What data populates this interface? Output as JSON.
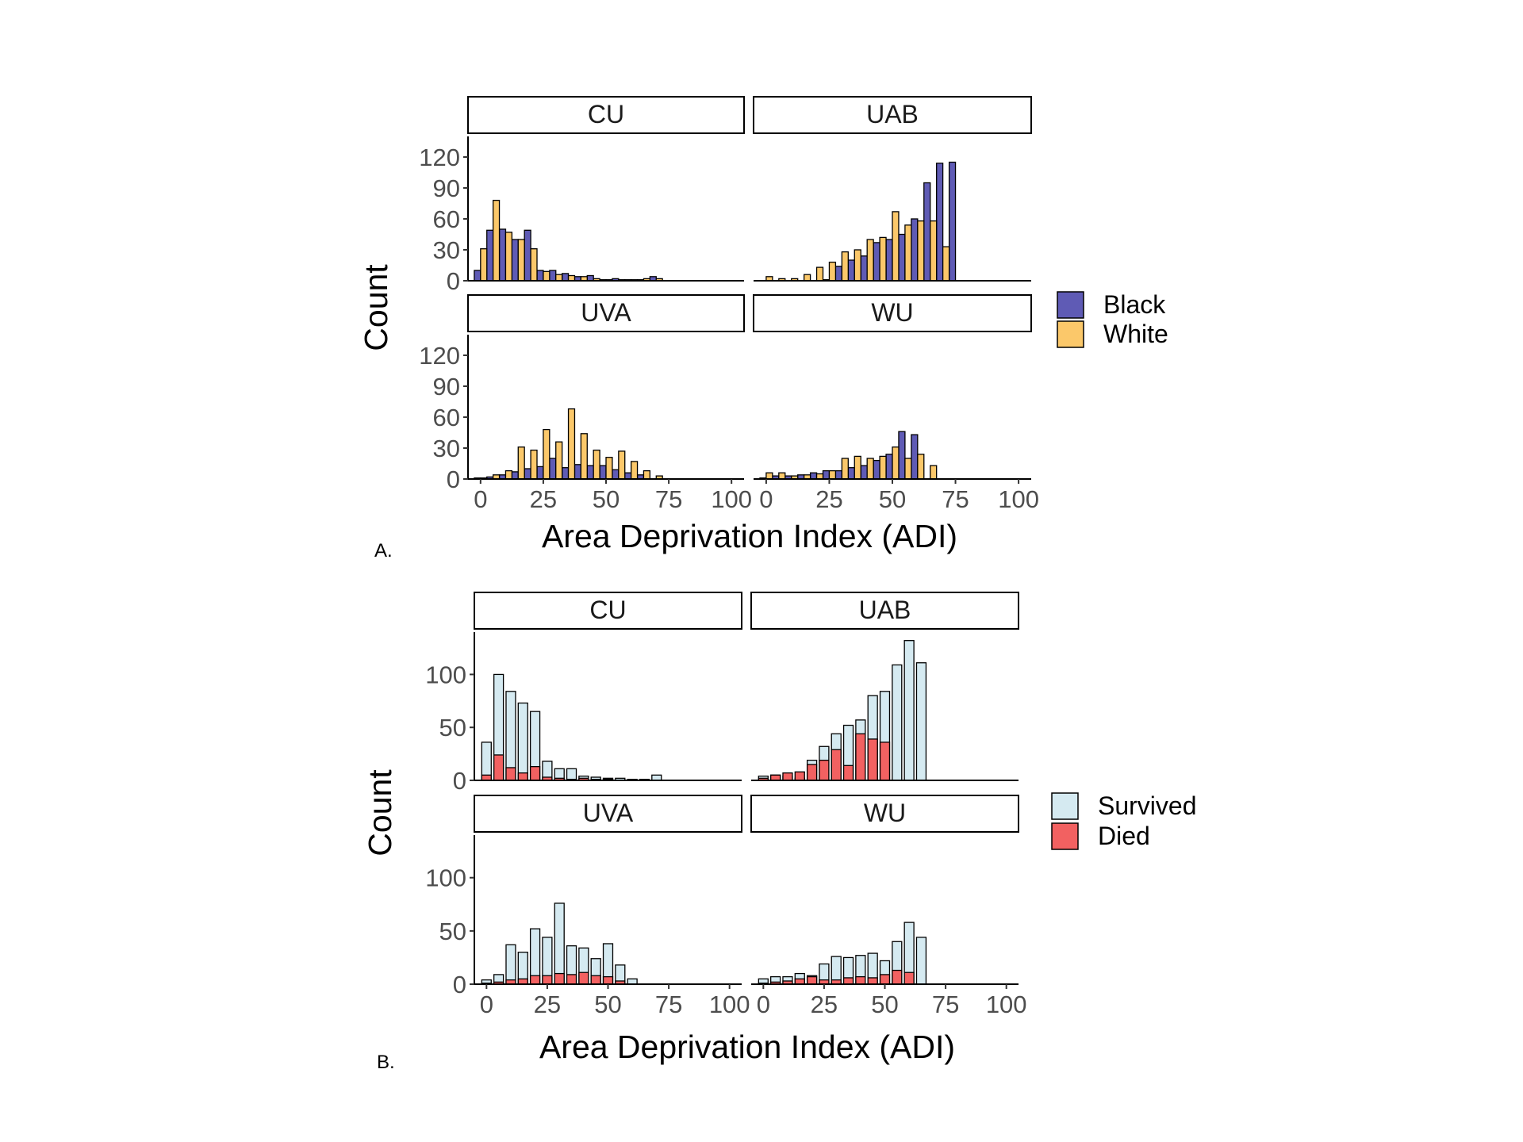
{
  "chart_data": [
    {
      "id": "A",
      "type": "bar",
      "panel_label": "A.",
      "xlabel": "Area Deprivation Index (ADI)",
      "ylabel": "Count",
      "xlim": [
        -5,
        105
      ],
      "ylim": [
        0,
        140
      ],
      "xticks": [
        0,
        25,
        50,
        75,
        100
      ],
      "yticks": [
        0,
        30,
        60,
        90,
        120
      ],
      "x": [
        0,
        5,
        10,
        15,
        20,
        25,
        30,
        35,
        40,
        45,
        50,
        55,
        60,
        65,
        70,
        75,
        80,
        85,
        90,
        95,
        100
      ],
      "legend": {
        "position": "right",
        "entries": [
          {
            "label": "Black",
            "color": "#5F5BB5"
          },
          {
            "label": "White",
            "color": "#FBC86A"
          }
        ]
      },
      "panels": [
        {
          "name": "CU",
          "series": [
            {
              "name": "Black",
              "values": [
                10,
                49,
                50,
                40,
                49,
                10,
                10,
                7,
                4,
                5,
                1,
                2,
                1,
                1,
                4
              ]
            },
            {
              "name": "White",
              "values": [
                31,
                78,
                47,
                40,
                31,
                9,
                6,
                5,
                4,
                2,
                1,
                1,
                1,
                2,
                2
              ]
            }
          ]
        },
        {
          "name": "UAB",
          "series": [
            {
              "name": "Black",
              "values": [
                0,
                0,
                0,
                0,
                0,
                1,
                14,
                20,
                24,
                37,
                40,
                45,
                60,
                95,
                114,
                115
              ]
            },
            {
              "name": "White",
              "values": [
                4,
                2,
                2,
                6,
                13,
                18,
                28,
                30,
                40,
                42,
                67,
                54,
                58,
                58,
                33
              ]
            }
          ]
        },
        {
          "name": "UVA",
          "series": [
            {
              "name": "Black",
              "values": [
                1,
                2,
                4,
                7,
                10,
                12,
                20,
                11,
                14,
                13,
                13,
                9,
                6,
                4
              ]
            },
            {
              "name": "White",
              "values": [
                1,
                4,
                8,
                31,
                28,
                48,
                36,
                68,
                44,
                28,
                21,
                27,
                17,
                8,
                3
              ]
            }
          ]
        },
        {
          "name": "WU",
          "series": [
            {
              "name": "Black",
              "values": [
                1,
                3,
                3,
                4,
                6,
                8,
                8,
                11,
                13,
                18,
                24,
                46,
                43
              ]
            },
            {
              "name": "White",
              "values": [
                6,
                6,
                3,
                4,
                5,
                8,
                20,
                22,
                20,
                22,
                31,
                20,
                24,
                13
              ]
            }
          ]
        }
      ]
    },
    {
      "id": "B",
      "type": "bar",
      "panel_label": "B.",
      "xlabel": "Area Deprivation Index (ADI)",
      "ylabel": "Count",
      "xlim": [
        -5,
        105
      ],
      "ylim": [
        0,
        140
      ],
      "xticks": [
        0,
        25,
        50,
        75,
        100
      ],
      "yticks": [
        0,
        50,
        100
      ],
      "x": [
        0,
        5,
        10,
        15,
        20,
        25,
        30,
        35,
        40,
        45,
        50,
        55,
        60,
        65,
        70,
        75,
        80,
        85,
        90,
        95,
        100
      ],
      "legend": {
        "position": "right",
        "entries": [
          {
            "label": "Survived",
            "color": "#D5EAF1"
          },
          {
            "label": "Died",
            "color": "#F26161"
          }
        ]
      },
      "panels": [
        {
          "name": "CU",
          "series": [
            {
              "name": "Survived",
              "values": [
                36,
                100,
                84,
                73,
                65,
                18,
                11,
                11,
                4,
                3,
                2,
                2,
                1,
                1,
                5
              ]
            },
            {
              "name": "Died",
              "values": [
                5,
                24,
                12,
                7,
                13,
                3,
                2,
                1,
                2,
                1,
                1
              ]
            }
          ]
        },
        {
          "name": "UAB",
          "series": [
            {
              "name": "Survived",
              "values": [
                4,
                5,
                4,
                2,
                19,
                32,
                44,
                52,
                57,
                80,
                84,
                109,
                132,
                111
              ]
            },
            {
              "name": "Died",
              "values": [
                2,
                5,
                7,
                8,
                15,
                19,
                29,
                14,
                44,
                39,
                36
              ]
            }
          ]
        },
        {
          "name": "UVA",
          "series": [
            {
              "name": "Survived",
              "values": [
                4,
                9,
                37,
                30,
                52,
                44,
                76,
                36,
                34,
                24,
                38,
                18,
                5
              ]
            },
            {
              "name": "Died",
              "values": [
                1,
                2,
                4,
                5,
                8,
                8,
                10,
                9,
                11,
                8,
                7,
                3
              ]
            }
          ]
        },
        {
          "name": "WU",
          "series": [
            {
              "name": "Survived",
              "values": [
                5,
                7,
                7,
                10,
                8,
                19,
                26,
                25,
                27,
                29,
                22,
                40,
                58,
                44
              ]
            },
            {
              "name": "Died",
              "values": [
                1,
                2,
                3,
                5,
                7,
                4,
                4,
                6,
                7,
                6,
                9,
                13,
                11
              ]
            }
          ]
        }
      ]
    }
  ]
}
